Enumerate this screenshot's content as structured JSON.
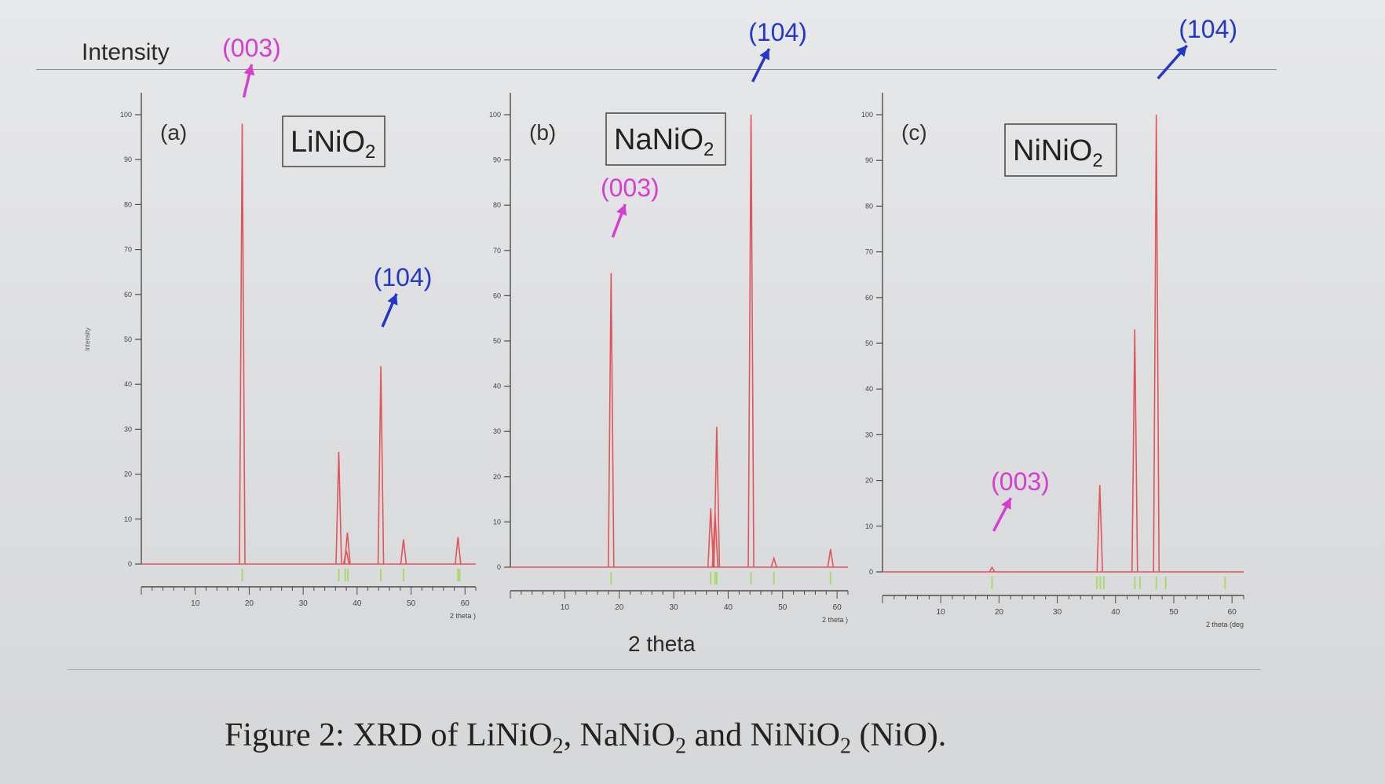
{
  "header": {
    "ylabel": "Intensity"
  },
  "shared_xlabel": "2 theta",
  "caption": {
    "prefix": "Figure 2: XRD of LiNiO",
    "sub1": "2",
    "mid1": ", NaNiO",
    "sub2": "2",
    "mid2": " and NiNiO",
    "sub3": "2",
    "suffix": " (NiO)."
  },
  "colors": {
    "pattern_line": "#e0555a",
    "reference_tick": "#a8d96a",
    "label_003": "#d53ecf",
    "label_104": "#2338c8",
    "axis": "#4d4d4d"
  },
  "chart_data": [
    {
      "type": "line",
      "panel_label": "(a)",
      "compound": "LiNiO",
      "compound_sub": "2",
      "ylabel": "Intensity",
      "xlabel": "2 theta )",
      "xlim": [
        0,
        62
      ],
      "ylim": [
        0,
        100
      ],
      "x_ticks": [
        10,
        20,
        30,
        40,
        50,
        60
      ],
      "y_ticks": [
        0,
        10,
        20,
        30,
        40,
        50,
        60,
        70,
        80,
        90,
        100
      ],
      "peaks": [
        {
          "x": 18.7,
          "y": 98
        },
        {
          "x": 36.6,
          "y": 25
        },
        {
          "x": 38.2,
          "y": 7
        },
        {
          "x": 38.0,
          "y": 3
        },
        {
          "x": 44.4,
          "y": 44
        },
        {
          "x": 48.6,
          "y": 5.5
        },
        {
          "x": 58.7,
          "y": 6
        }
      ],
      "reference_ticks": [
        18.7,
        36.6,
        37.8,
        38.3,
        44.4,
        48.6,
        58.7,
        59.0
      ],
      "annotations": [
        {
          "text": "(003)",
          "x": 18.7,
          "kind": "003"
        },
        {
          "text": "(104)",
          "x": 44.4,
          "kind": "104"
        }
      ]
    },
    {
      "type": "line",
      "panel_label": "(b)",
      "compound": "NaNiO",
      "compound_sub": "2",
      "xlabel": "2 theta )",
      "xlim": [
        0,
        62
      ],
      "ylim": [
        0,
        100
      ],
      "x_ticks": [
        10,
        20,
        30,
        40,
        50,
        60
      ],
      "y_ticks": [
        0,
        10,
        20,
        30,
        40,
        50,
        60,
        70,
        80,
        90,
        100
      ],
      "peaks": [
        {
          "x": 18.5,
          "y": 65
        },
        {
          "x": 36.8,
          "y": 13
        },
        {
          "x": 37.6,
          "y": 12
        },
        {
          "x": 37.9,
          "y": 31
        },
        {
          "x": 44.2,
          "y": 100
        },
        {
          "x": 48.4,
          "y": 2
        },
        {
          "x": 58.8,
          "y": 4
        }
      ],
      "reference_ticks": [
        18.5,
        36.8,
        37.6,
        37.9,
        44.2,
        48.4,
        58.8
      ],
      "annotations": [
        {
          "text": "(003)",
          "x": 18.5,
          "kind": "003"
        },
        {
          "text": "(104)",
          "x": 44.2,
          "kind": "104"
        }
      ]
    },
    {
      "type": "line",
      "panel_label": "(c)",
      "compound": "NiNiO",
      "compound_sub": "2",
      "xlabel": "2 theta (deg",
      "xlim": [
        0,
        62
      ],
      "ylim": [
        0,
        100
      ],
      "x_ticks": [
        10,
        20,
        30,
        40,
        50,
        60
      ],
      "y_ticks": [
        0,
        10,
        20,
        30,
        40,
        50,
        60,
        70,
        80,
        90,
        100
      ],
      "peaks": [
        {
          "x": 18.8,
          "y": 1
        },
        {
          "x": 37.3,
          "y": 19
        },
        {
          "x": 43.3,
          "y": 53
        },
        {
          "x": 47.0,
          "y": 100
        }
      ],
      "reference_ticks": [
        18.8,
        36.8,
        37.4,
        38.0,
        43.3,
        44.2,
        47.0,
        48.6,
        58.8
      ],
      "annotations": [
        {
          "text": "(003)",
          "x": 18.8,
          "kind": "003"
        },
        {
          "text": "(104)",
          "x": 47.0,
          "kind": "104"
        }
      ]
    }
  ]
}
